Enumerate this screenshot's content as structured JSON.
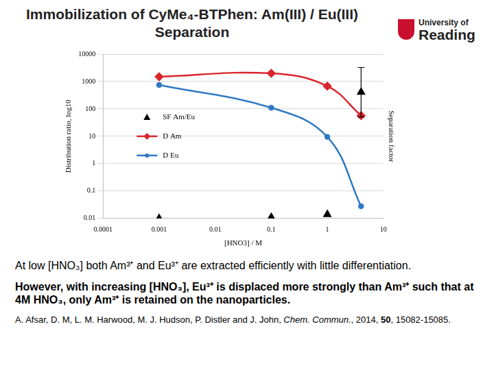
{
  "title": "Immobilization of CyMe₄-BTPhen: Am(III) / Eu(III) Separation",
  "logo": [
    "University of",
    "Reading"
  ],
  "chart_data": {
    "type": "line",
    "x_label": "[HNO3] / M",
    "y_label": "Distribution ratio, log10",
    "y2_label": "Separation factor",
    "log": true,
    "grid": "y",
    "legend": "center left",
    "xlim": [
      0.0001,
      10
    ],
    "xticks": [
      0.0001,
      0.001,
      0.01,
      0.1,
      1,
      10
    ],
    "ylim": [
      0.01,
      10000
    ],
    "yticks": [
      0.01,
      0.1,
      1,
      10,
      100,
      1000,
      10000
    ],
    "x": [
      0.001,
      0.1,
      1,
      4
    ],
    "series": [
      {
        "name": "SF Am/Eu",
        "type": "scatter",
        "color": "#000000",
        "marker": "triangle",
        "values": [
          0.01,
          0.011,
          0.014,
          410
        ],
        "error_low": [
          null,
          null,
          null,
          51
        ],
        "error_high": [
          null,
          null,
          null,
          3250
        ]
      },
      {
        "name": "D Am",
        "type": "line",
        "color": "#d9262c",
        "marker": "diamond",
        "line_style": "solid",
        "values": [
          1500,
          2000,
          680,
          57
        ]
      },
      {
        "name": "D Eu",
        "type": "line",
        "color": "#2f78c4",
        "marker": "circle",
        "line_style": "solid",
        "values": [
          750,
          110,
          9.5,
          0.028
        ]
      }
    ]
  },
  "text": [
    {
      "text": "At low [HNO₃] both Am³⁺ and Eu³⁺ are extracted efficiently with little differentiation.",
      "bold": false
    },
    {
      "text": "However, with increasing [HNO₃], Eu³⁺ is displaced more strongly than Am³⁺ such that at 4M HNO₃, only Am³⁺ is retained on the nanoparticles.",
      "bold": true
    }
  ],
  "citation": [
    {
      "text": "A. Afsar, D. M, L. M. Harwood, M. J. Hudson, P. Distler and J. John, "
    },
    {
      "text": "Chem. Commun.",
      "italic": true
    },
    {
      "text": ", 2014, "
    },
    {
      "text": "50",
      "bold": true
    },
    {
      "text": ", 15082-15085."
    }
  ]
}
